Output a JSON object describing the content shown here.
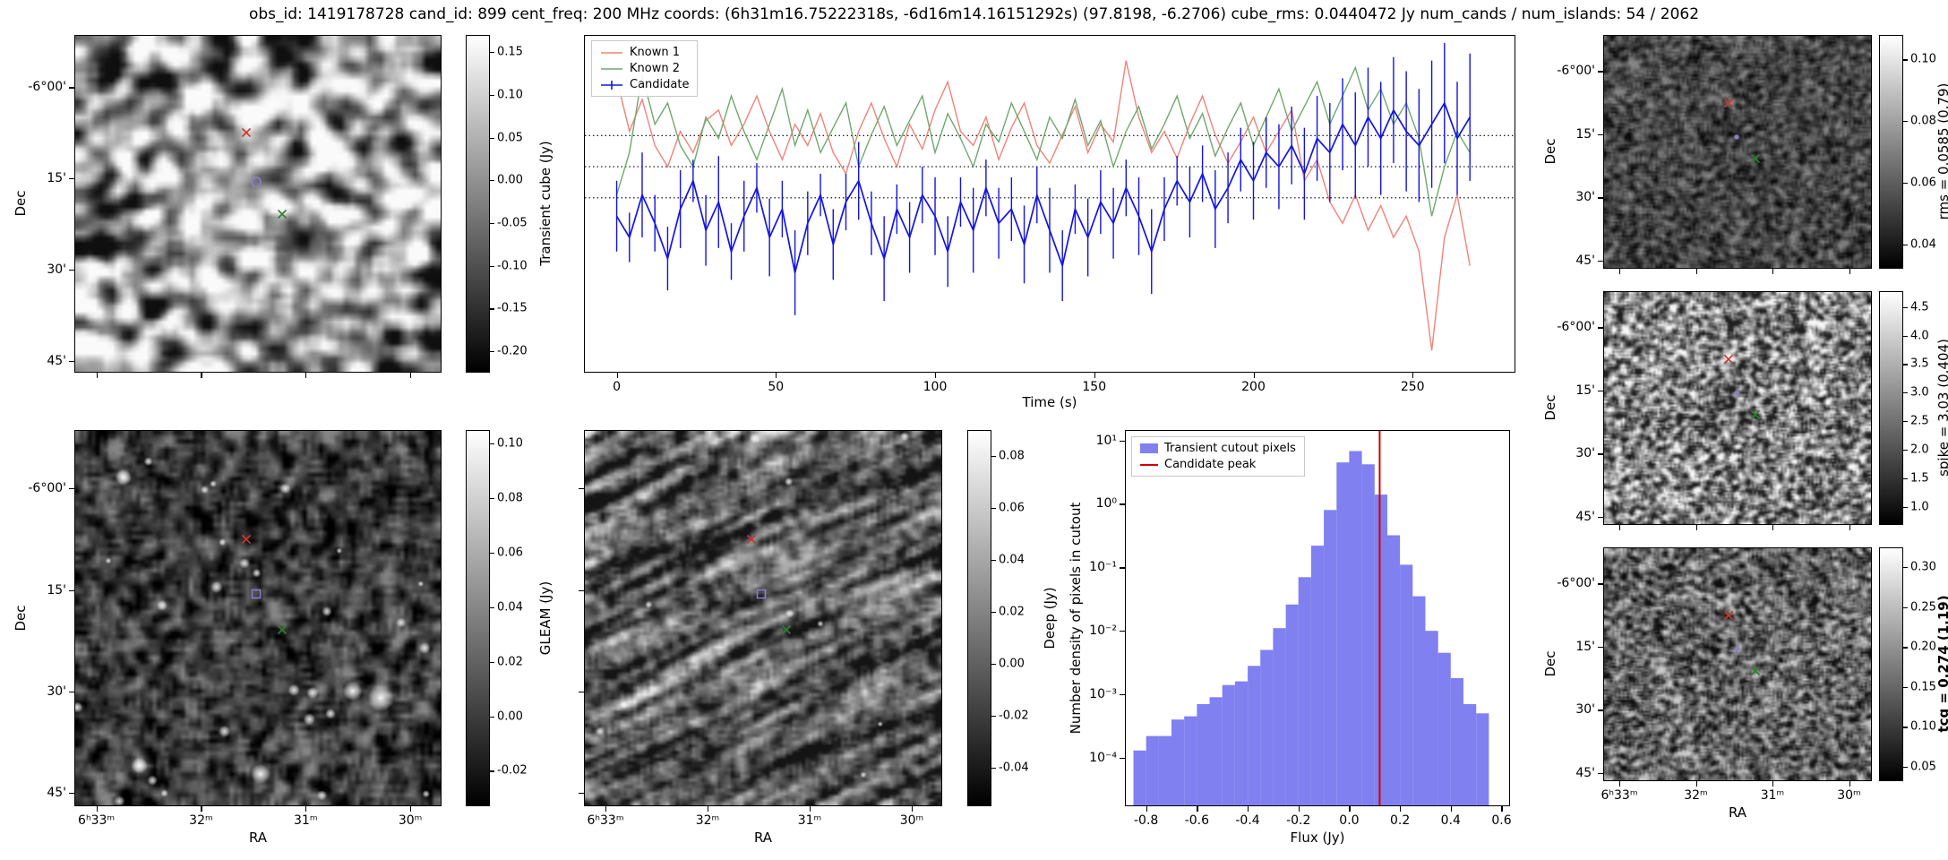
{
  "title": "obs_id: 1419178728 cand_id: 899 cent_freq: 200 MHz coords: (6h31m16.75222318s, -6d16m14.16151292s) (97.8198, -6.2706) cube_rms: 0.0440472 Jy num_cands / num_islands: 54 / 2062",
  "axis": {
    "dec_label": "Dec",
    "ra_label": "RA",
    "dec_ticks": [
      "-6°00'",
      "15'",
      "30'",
      "45'"
    ],
    "ra_ticks": [
      "6ʰ33ᵐ",
      "32ᵐ",
      "31ᵐ",
      "30ᵐ"
    ]
  },
  "colorbars": {
    "transient": {
      "label": "Transient cube (Jy)",
      "ticks": [
        0.15,
        0.1,
        0.05,
        0.0,
        -0.05,
        -0.1,
        -0.15,
        -0.2
      ],
      "vmin": -0.225,
      "vmax": 0.17,
      "decimals": 2
    },
    "gleam": {
      "label": "GLEAM (Jy)",
      "ticks": [
        0.1,
        0.08,
        0.06,
        0.04,
        0.02,
        0.0,
        -0.02
      ],
      "vmin": -0.033,
      "vmax": 0.105,
      "decimals": 2
    },
    "deep": {
      "label": "Deep (Jy)",
      "ticks": [
        0.08,
        0.06,
        0.04,
        0.02,
        0.0,
        -0.02,
        -0.04
      ],
      "vmin": -0.055,
      "vmax": 0.09,
      "decimals": 2
    },
    "rms": {
      "label": "rms = 0.0585 (0.79)",
      "ticks": [
        0.1,
        0.08,
        0.06,
        0.04
      ],
      "vmin": 0.032,
      "vmax": 0.108,
      "decimals": 2
    },
    "spike": {
      "label": "spike = 3.03 (0.404)",
      "ticks": [
        4.5,
        4.0,
        3.5,
        3.0,
        2.5,
        2.0,
        1.5,
        1.0
      ],
      "vmin": 0.68,
      "vmax": 4.78,
      "decimals": 1
    },
    "tcg": {
      "label": "tcg = 0.274 (1.19)",
      "ticks": [
        0.3,
        0.25,
        0.2,
        0.15,
        0.1,
        0.05
      ],
      "vmin": 0.032,
      "vmax": 0.325,
      "decimals": 2,
      "bold": true
    }
  },
  "markers": {
    "known1": {
      "shape": "x",
      "color": "#c9372c",
      "fx": 0.468,
      "fy": 0.29
    },
    "known2": {
      "shape": "x",
      "color": "#2e7d32",
      "fx": 0.565,
      "fy": 0.53
    },
    "candidate": {
      "color": "#8a7fd6",
      "fx": 0.495,
      "fy": 0.435,
      "shape_by_panel": {
        "transient": "circle",
        "gleam": "square",
        "deep": "square",
        "rms": "dot",
        "spike": "dot",
        "tcg": "dot"
      }
    }
  },
  "chart_data": [
    {
      "id": "lightcurve",
      "type": "line",
      "xlabel": "Time (s)",
      "ylabel": "Transient cube (Jy)",
      "xlim": [
        -10,
        282
      ],
      "ylim": [
        -0.29,
        0.185
      ],
      "xticks": [
        0,
        50,
        100,
        150,
        200,
        250
      ],
      "hlines": [
        0.0440472,
        0,
        -0.0440472
      ],
      "x_start": 0,
      "x_step": 4,
      "legend_position": "upper left",
      "series": [
        {
          "name": "Known 1",
          "color": "#ef8379",
          "values": [
            0.125,
            0.05,
            0.095,
            0.03,
            0.0,
            0.05,
            0.02,
            0.065,
            0.08,
            0.03,
            0.06,
            0.1,
            0.05,
            0.01,
            0.06,
            0.03,
            0.075,
            0.02,
            -0.01,
            0.05,
            0.09,
            0.04,
            0.0,
            0.06,
            0.025,
            0.08,
            0.12,
            0.05,
            0.03,
            0.07,
            0.01,
            0.055,
            0.09,
            0.03,
            0.005,
            0.045,
            0.085,
            0.02,
            0.06,
            0.035,
            0.15,
            0.07,
            0.02,
            0.05,
            0.012,
            0.06,
            0.1,
            0.045,
            0.005,
            0.035,
            0.07,
            0.02,
            0.05,
            0.08,
            -0.02,
            0.01,
            -0.05,
            -0.08,
            -0.04,
            -0.09,
            -0.055,
            -0.1,
            -0.07,
            -0.12,
            -0.26,
            -0.1,
            -0.04,
            -0.14
          ]
        },
        {
          "name": "Known 2",
          "color": "#6fa86f",
          "values": [
            -0.04,
            0.02,
            0.13,
            0.06,
            0.09,
            0.03,
            0.0,
            0.07,
            0.04,
            0.1,
            0.05,
            0.01,
            0.06,
            0.11,
            0.03,
            0.08,
            0.02,
            0.055,
            0.09,
            0.0,
            0.045,
            0.085,
            0.03,
            0.065,
            0.1,
            0.02,
            0.075,
            0.04,
            0.0,
            0.06,
            0.035,
            0.09,
            0.05,
            0.01,
            0.07,
            0.04,
            0.095,
            0.03,
            0.065,
            0.0,
            0.05,
            0.085,
            0.025,
            0.06,
            0.1,
            0.04,
            0.075,
            0.015,
            0.055,
            0.09,
            0.03,
            0.07,
            0.11,
            0.05,
            0.085,
            0.12,
            0.06,
            0.1,
            0.14,
            0.08,
            0.11,
            0.06,
            0.09,
            0.04,
            -0.07,
            0.0,
            0.05,
            0.02
          ]
        },
        {
          "name": "Candidate",
          "color": "#1414e0",
          "values": [
            -0.07,
            -0.1,
            -0.04,
            -0.08,
            -0.13,
            -0.06,
            -0.02,
            -0.09,
            -0.05,
            -0.12,
            -0.07,
            -0.03,
            -0.1,
            -0.06,
            -0.15,
            -0.08,
            -0.04,
            -0.11,
            -0.05,
            -0.02,
            -0.08,
            -0.13,
            -0.06,
            -0.1,
            -0.04,
            -0.07,
            -0.12,
            -0.05,
            -0.09,
            -0.03,
            -0.08,
            -0.06,
            -0.11,
            -0.04,
            -0.09,
            -0.14,
            -0.06,
            -0.1,
            -0.05,
            -0.08,
            -0.03,
            -0.07,
            -0.12,
            -0.06,
            -0.02,
            -0.05,
            -0.01,
            -0.06,
            -0.03,
            0.01,
            -0.02,
            0.02,
            0.0,
            0.03,
            -0.01,
            0.04,
            0.02,
            0.06,
            0.03,
            0.07,
            0.04,
            0.08,
            0.05,
            0.03,
            0.06,
            0.09,
            0.04,
            0.07
          ],
          "errors": [
            0.05,
            0.035,
            0.06,
            0.04,
            0.045,
            0.055,
            0.03,
            0.05,
            0.065,
            0.04,
            0.05,
            0.035,
            0.055,
            0.04,
            0.06,
            0.045,
            0.03,
            0.05,
            0.04,
            0.055,
            0.045,
            0.06,
            0.035,
            0.05,
            0.04,
            0.055,
            0.05,
            0.035,
            0.06,
            0.04,
            0.05,
            0.045,
            0.055,
            0.04,
            0.06,
            0.05,
            0.035,
            0.055,
            0.045,
            0.05,
            0.04,
            0.055,
            0.06,
            0.045,
            0.035,
            0.05,
            0.04,
            0.055,
            0.05,
            0.045,
            0.055,
            0.05,
            0.06,
            0.055,
            0.065,
            0.06,
            0.07,
            0.065,
            0.075,
            0.07,
            0.08,
            0.075,
            0.085,
            0.08,
            0.09,
            0.085,
            0.08,
            0.09
          ]
        }
      ]
    },
    {
      "id": "histogram",
      "type": "bar",
      "xlabel": "Flux (Jy)",
      "ylabel": "Number density of pixels in cutout",
      "xlim": [
        -0.88,
        0.63
      ],
      "ylog_top_exp": 1.15,
      "ylog_bottom_exp": -4.75,
      "xticks": [
        -0.8,
        -0.6,
        -0.4,
        -0.2,
        0,
        0.2,
        0.4,
        0.6
      ],
      "ytick_exps": [
        1,
        0,
        -1,
        -2,
        -3,
        -4
      ],
      "ytick_labels": [
        "10¹",
        "10⁰",
        "10⁻¹",
        "10⁻²",
        "10⁻³",
        "10⁻⁴"
      ],
      "bin_start": -0.85,
      "bin_width": 0.05,
      "counts": [
        0.00013,
        0.00022,
        0.00022,
        0.0004,
        0.00045,
        0.0007,
        0.0009,
        0.0014,
        0.0016,
        0.0028,
        0.005,
        0.011,
        0.026,
        0.07,
        0.22,
        0.8,
        4.5,
        6.8,
        4.2,
        1.4,
        0.32,
        0.11,
        0.035,
        0.01,
        0.0045,
        0.0018,
        0.0007,
        0.0005
      ],
      "bar_color": "#8080f0",
      "peak_flux": 0.12,
      "peak_color": "#d40000",
      "legend": [
        "Transient cutout pixels",
        "Candidate peak"
      ]
    }
  ]
}
